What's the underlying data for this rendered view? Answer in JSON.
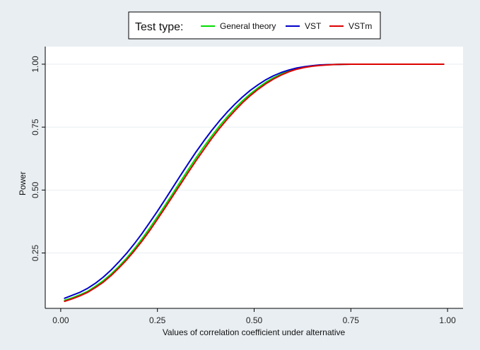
{
  "chart_data": {
    "type": "line",
    "xlabel": "Values of correlation coefficient under alternative",
    "ylabel": "Power",
    "xlim": [
      -0.04,
      1.04
    ],
    "ylim": [
      0.03,
      1.07
    ],
    "xticks": [
      0,
      0.25,
      0.5,
      0.75,
      1
    ],
    "xtick_labels": [
      "0.00",
      "0.25",
      "0.50",
      "0.75",
      "1.00"
    ],
    "yticks": [
      0.25,
      0.5,
      0.75,
      1
    ],
    "ytick_labels": [
      "0.25",
      "0.50",
      "0.75",
      "1.00"
    ],
    "grid": true,
    "legend": {
      "title": "Test type:",
      "position": "top-center"
    },
    "series": [
      {
        "name": "General theory",
        "color": "#00dd00",
        "x": [
          0.01,
          0.03,
          0.05,
          0.07,
          0.09,
          0.11,
          0.13,
          0.15,
          0.17,
          0.19,
          0.21,
          0.23,
          0.25,
          0.27,
          0.29,
          0.31,
          0.33,
          0.35,
          0.37,
          0.39,
          0.41,
          0.43,
          0.45,
          0.47,
          0.49,
          0.51,
          0.53,
          0.55,
          0.57,
          0.59,
          0.61,
          0.63,
          0.65,
          0.67,
          0.69,
          0.71,
          0.73,
          0.75,
          0.8,
          0.85,
          0.9,
          0.95,
          0.99
        ],
        "y": [
          0.062,
          0.072,
          0.084,
          0.098,
          0.118,
          0.14,
          0.166,
          0.196,
          0.229,
          0.266,
          0.306,
          0.349,
          0.394,
          0.44,
          0.487,
          0.535,
          0.582,
          0.628,
          0.672,
          0.714,
          0.754,
          0.79,
          0.824,
          0.855,
          0.882,
          0.906,
          0.928,
          0.946,
          0.961,
          0.973,
          0.982,
          0.988,
          0.993,
          0.996,
          0.998,
          0.999,
          0.9995,
          1,
          1,
          1,
          1,
          1,
          1
        ]
      },
      {
        "name": "VST",
        "color": "#0000cc",
        "x": [
          0.01,
          0.03,
          0.05,
          0.07,
          0.09,
          0.11,
          0.13,
          0.15,
          0.17,
          0.19,
          0.21,
          0.23,
          0.25,
          0.27,
          0.29,
          0.31,
          0.33,
          0.35,
          0.37,
          0.39,
          0.41,
          0.43,
          0.45,
          0.47,
          0.49,
          0.51,
          0.53,
          0.55,
          0.57,
          0.59,
          0.61,
          0.63,
          0.65,
          0.67,
          0.69,
          0.71,
          0.73,
          0.75,
          0.8,
          0.85,
          0.9,
          0.95,
          0.99
        ],
        "y": [
          0.07,
          0.082,
          0.094,
          0.11,
          0.13,
          0.154,
          0.182,
          0.214,
          0.248,
          0.286,
          0.327,
          0.371,
          0.416,
          0.463,
          0.511,
          0.559,
          0.606,
          0.652,
          0.695,
          0.736,
          0.774,
          0.809,
          0.841,
          0.87,
          0.896,
          0.918,
          0.938,
          0.954,
          0.967,
          0.977,
          0.985,
          0.99,
          0.994,
          0.997,
          0.998,
          0.999,
          0.9995,
          1,
          1,
          1,
          1,
          1,
          1
        ]
      },
      {
        "name": "VSTm",
        "color": "#dd0000",
        "x": [
          0.01,
          0.03,
          0.05,
          0.07,
          0.09,
          0.11,
          0.13,
          0.15,
          0.17,
          0.19,
          0.21,
          0.23,
          0.25,
          0.27,
          0.29,
          0.31,
          0.33,
          0.35,
          0.37,
          0.39,
          0.41,
          0.43,
          0.45,
          0.47,
          0.49,
          0.51,
          0.53,
          0.55,
          0.57,
          0.59,
          0.61,
          0.63,
          0.65,
          0.67,
          0.69,
          0.71,
          0.73,
          0.75,
          0.8,
          0.85,
          0.9,
          0.95,
          0.99
        ],
        "y": [
          0.058,
          0.068,
          0.08,
          0.094,
          0.113,
          0.134,
          0.16,
          0.19,
          0.222,
          0.258,
          0.297,
          0.339,
          0.384,
          0.43,
          0.477,
          0.524,
          0.571,
          0.617,
          0.661,
          0.704,
          0.744,
          0.781,
          0.815,
          0.847,
          0.875,
          0.9,
          0.922,
          0.941,
          0.957,
          0.97,
          0.98,
          0.987,
          0.992,
          0.995,
          0.997,
          0.999,
          0.9995,
          1,
          1,
          1,
          1,
          1,
          1
        ]
      }
    ]
  }
}
